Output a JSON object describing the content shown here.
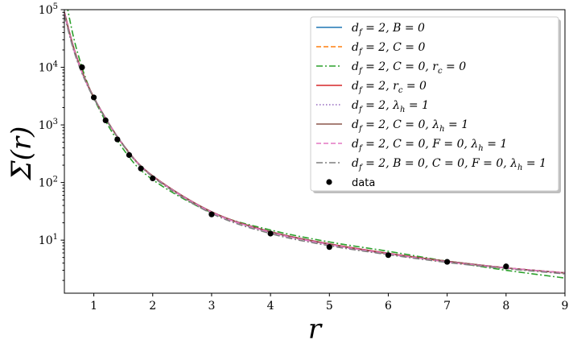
{
  "chart_data": {
    "type": "line",
    "xlabel": "r",
    "ylabel": "Σ(r)",
    "xlim": [
      0.5,
      9
    ],
    "ylim": [
      1.2,
      100000
    ],
    "yscale": "log",
    "xticks": [
      1,
      2,
      3,
      4,
      5,
      6,
      7,
      8,
      9
    ],
    "yticks": [
      {
        "value": 10,
        "label": "10",
        "exp": "1"
      },
      {
        "value": 100,
        "label": "10",
        "exp": "2"
      },
      {
        "value": 1000,
        "label": "10",
        "exp": "3"
      },
      {
        "value": 10000,
        "label": "10",
        "exp": "4"
      },
      {
        "value": 100000,
        "label": "10",
        "exp": "5"
      }
    ],
    "grid": false,
    "legend_position": "top-right",
    "series": [
      {
        "name": "d_f = 2, B = 0",
        "color": "#1f77b4",
        "dash": "solid",
        "x": [
          0.5,
          0.7,
          1,
          1.5,
          2,
          3,
          4,
          5,
          6,
          7,
          8,
          9
        ],
        "y": [
          90000,
          16000,
          3000,
          450,
          130,
          31,
          14,
          8.6,
          5.9,
          4.3,
          3.3,
          2.7
        ]
      },
      {
        "name": "d_f = 2, C = 0",
        "color": "#ff7f0e",
        "dash": "dashed",
        "x": [
          0.5,
          0.7,
          1,
          1.5,
          2,
          3,
          4,
          5,
          6,
          7,
          8,
          9
        ],
        "y": [
          88000,
          15500,
          2950,
          440,
          128,
          30.5,
          13.8,
          8.5,
          5.8,
          4.2,
          3.3,
          2.7
        ]
      },
      {
        "name": "d_f = 2, C = 0, r_c = 0",
        "color": "#2ca02c",
        "dash": "dashdot",
        "x": [
          0.5,
          0.7,
          1,
          1.5,
          2,
          3,
          4,
          5,
          6,
          7,
          8,
          9
        ],
        "y": [
          200000,
          22000,
          2900,
          380,
          112,
          30,
          15,
          9.3,
          6.4,
          4.3,
          3.0,
          2.2
        ]
      },
      {
        "name": "d_f = 2, r_c = 0",
        "color": "#d62728",
        "dash": "solid",
        "x": [
          0.5,
          0.7,
          1,
          1.5,
          2,
          3,
          4,
          5,
          6,
          7,
          8,
          9
        ],
        "y": [
          90000,
          16000,
          3000,
          450,
          130,
          31,
          14,
          8.6,
          5.9,
          4.3,
          3.3,
          2.7
        ]
      },
      {
        "name": "d_f = 2, λ_h = 1",
        "color": "#9467bd",
        "dash": "dotted",
        "x": [
          0.5,
          0.7,
          1,
          1.5,
          2,
          3,
          4,
          5,
          6,
          7,
          8,
          9
        ],
        "y": [
          85000,
          15000,
          2950,
          445,
          128,
          30,
          13.5,
          8.3,
          5.7,
          4.2,
          3.3,
          2.7
        ]
      },
      {
        "name": "d_f = 2, C = 0, λ_h = 1",
        "color": "#8c564b",
        "dash": "solid",
        "x": [
          0.5,
          0.7,
          1,
          1.5,
          2,
          3,
          4,
          5,
          6,
          7,
          8,
          9
        ],
        "y": [
          88000,
          15500,
          2980,
          448,
          129,
          30.8,
          13.9,
          8.5,
          5.8,
          4.3,
          3.3,
          2.7
        ]
      },
      {
        "name": "d_f = 2, C = 0, F = 0, λ_h = 1",
        "color": "#e377c2",
        "dash": "dashed",
        "x": [
          0.5,
          0.7,
          1,
          1.5,
          2,
          3,
          4,
          5,
          6,
          7,
          8,
          9
        ],
        "y": [
          86000,
          15200,
          2960,
          446,
          128,
          30.5,
          13.7,
          8.4,
          5.8,
          4.2,
          3.3,
          2.7
        ]
      },
      {
        "name": "d_f = 2, B = 0, C = 0, F = 0, λ_h = 1",
        "color": "#7f7f7f",
        "dash": "dashdot",
        "x": [
          0.5,
          0.7,
          1,
          1.5,
          2,
          3,
          4,
          5,
          6,
          7,
          8,
          9
        ],
        "y": [
          80000,
          14500,
          2900,
          440,
          125,
          29,
          13,
          8.0,
          5.6,
          4.1,
          3.2,
          2.6
        ]
      }
    ],
    "data_points": {
      "name": "data",
      "color": "#000000",
      "x": [
        0.8,
        1.0,
        1.2,
        1.4,
        1.6,
        1.8,
        2.0,
        3.0,
        4.0,
        5.0,
        6.0,
        7.0,
        8.0
      ],
      "y": [
        10000,
        3000,
        1200,
        560,
        300,
        175,
        118,
        28,
        13,
        7.6,
        5.5,
        4.2,
        3.5
      ]
    }
  },
  "legend_entries": [
    {
      "main": "d",
      "sub": "f",
      "rest": " = 2, B = 0"
    },
    {
      "main": "d",
      "sub": "f",
      "rest": " = 2, C = 0"
    },
    {
      "main": "d",
      "sub": "f",
      "rest": " = 2, C = 0, r",
      "sub2": "c",
      "rest2": " = 0"
    },
    {
      "main": "d",
      "sub": "f",
      "rest": " = 2, r",
      "sub2": "c",
      "rest2": " = 0"
    },
    {
      "main": "d",
      "sub": "f",
      "rest": " = 2, λ",
      "sub2": "h",
      "rest2": " = 1"
    },
    {
      "main": "d",
      "sub": "f",
      "rest": " = 2, C = 0, λ",
      "sub2": "h",
      "rest2": " = 1"
    },
    {
      "main": "d",
      "sub": "f",
      "rest": " = 2, C = 0, F = 0, λ",
      "sub2": "h",
      "rest2": " = 1"
    },
    {
      "main": "d",
      "sub": "f",
      "rest": " = 2, B = 0, C = 0, F = 0, λ",
      "sub2": "h",
      "rest2": " = 1"
    }
  ]
}
